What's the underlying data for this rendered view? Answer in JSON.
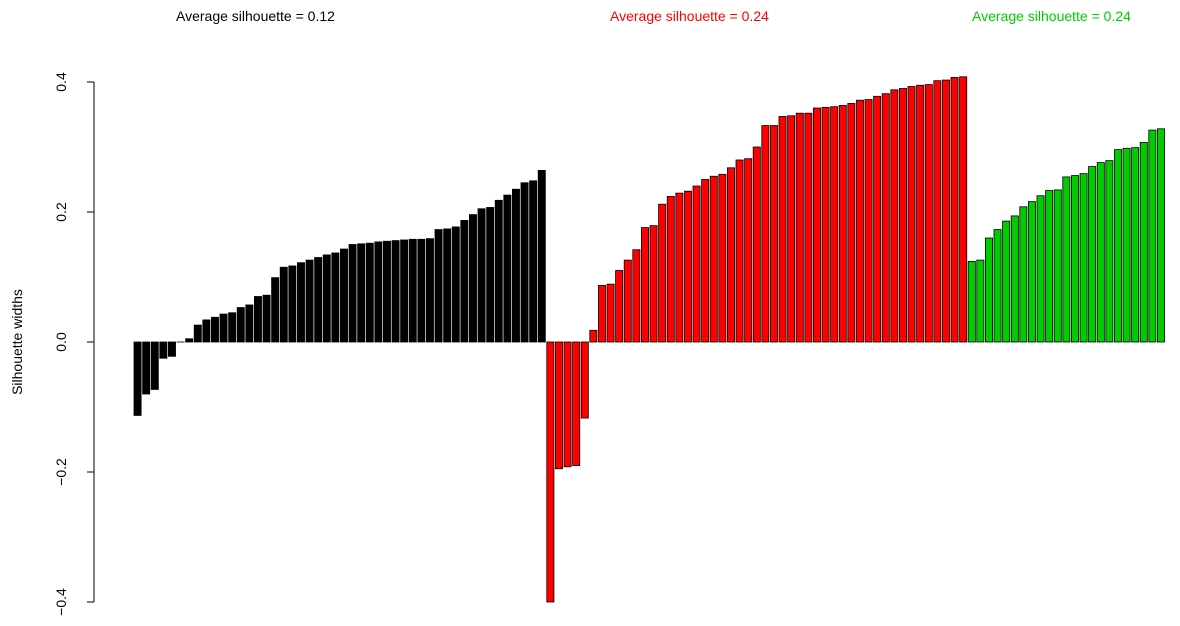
{
  "chart_data": {
    "type": "bar",
    "ylabel": "Silhouette widths",
    "ylim": [
      -0.4,
      0.4
    ],
    "y_ticks": [
      {
        "value": 0.4,
        "label": "0.4"
      },
      {
        "value": 0.2,
        "label": "0.2"
      },
      {
        "value": 0.0,
        "label": "0.0"
      },
      {
        "value": -0.2,
        "label": "−0.2"
      },
      {
        "value": -0.4,
        "label": "−0.4"
      }
    ],
    "bar_outline_color": "#000000",
    "series": [
      {
        "title": "Average silhouette = 0.12",
        "color": "#000000",
        "values": [
          -0.113,
          -0.08,
          -0.073,
          -0.025,
          -0.022,
          0.0,
          0.005,
          0.026,
          0.034,
          0.038,
          0.043,
          0.045,
          0.053,
          0.057,
          0.07,
          0.072,
          0.099,
          0.115,
          0.117,
          0.122,
          0.126,
          0.13,
          0.134,
          0.137,
          0.143,
          0.15,
          0.151,
          0.152,
          0.154,
          0.155,
          0.156,
          0.157,
          0.158,
          0.158,
          0.159,
          0.173,
          0.174,
          0.177,
          0.187,
          0.196,
          0.205,
          0.207,
          0.218,
          0.226,
          0.235,
          0.245,
          0.248,
          0.264
        ]
      },
      {
        "title": "Average silhouette = 0.24",
        "color": "#ff0000",
        "values": [
          -0.4,
          -0.195,
          -0.192,
          -0.19,
          -0.117,
          0.018,
          0.087,
          0.089,
          0.11,
          0.126,
          0.142,
          0.176,
          0.179,
          0.212,
          0.224,
          0.229,
          0.232,
          0.24,
          0.25,
          0.255,
          0.258,
          0.268,
          0.28,
          0.282,
          0.3,
          0.333,
          0.333,
          0.347,
          0.348,
          0.352,
          0.352,
          0.36,
          0.361,
          0.362,
          0.364,
          0.367,
          0.372,
          0.373,
          0.378,
          0.382,
          0.388,
          0.39,
          0.393,
          0.395,
          0.396,
          0.402,
          0.403,
          0.407,
          0.408
        ]
      },
      {
        "title": "Average silhouette = 0.24",
        "color": "#00cc00",
        "values": [
          0.124,
          0.126,
          0.16,
          0.173,
          0.186,
          0.194,
          0.208,
          0.216,
          0.225,
          0.233,
          0.234,
          0.254,
          0.256,
          0.259,
          0.27,
          0.276,
          0.279,
          0.296,
          0.298,
          0.299,
          0.307,
          0.326,
          0.328
        ]
      }
    ]
  }
}
